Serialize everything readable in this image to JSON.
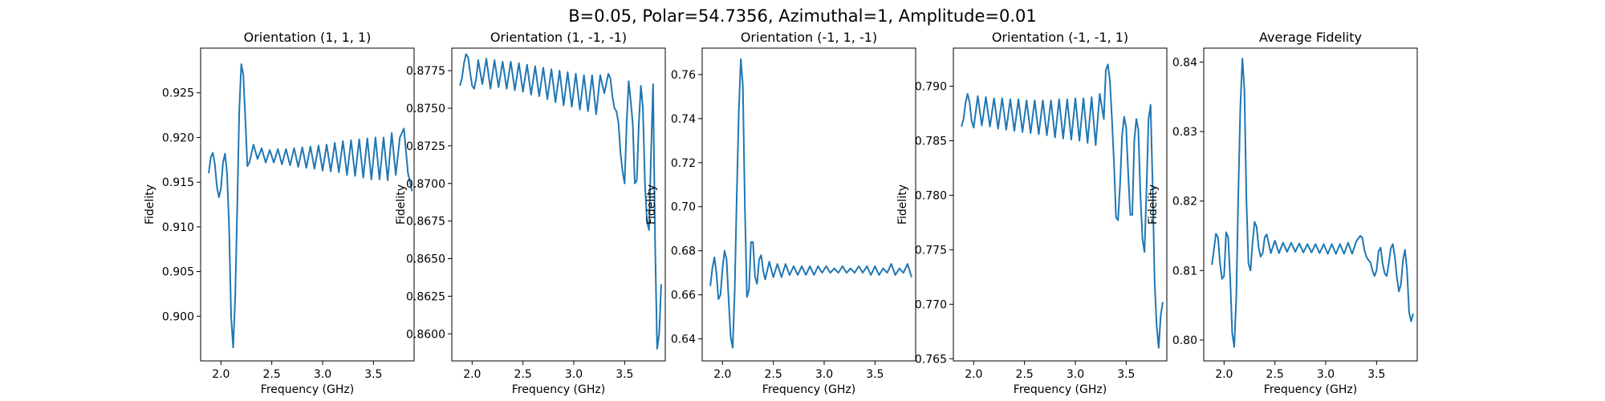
{
  "figure": {
    "suptitle": "B=0.05, Polar=54.7356, Azimuthal=1, Amplitude=0.01"
  },
  "style": {
    "line_color": "#1f77b4",
    "axis_color": "#000000",
    "background": "#ffffff"
  },
  "chart_data": [
    {
      "type": "line",
      "title": "Orientation (1, 1, 1)",
      "xlabel": "Frequency (GHz)",
      "ylabel": "Fidelity",
      "xlim": [
        1.8,
        3.9
      ],
      "ylim": [
        0.895,
        0.93
      ],
      "xticks": [
        2.0,
        2.5,
        3.0,
        3.5
      ],
      "xtick_labels": [
        "2.0",
        "2.5",
        "3.0",
        "3.5"
      ],
      "yticks": [
        0.9,
        0.905,
        0.91,
        0.915,
        0.92,
        0.925
      ],
      "ytick_labels": [
        "0.900",
        "0.905",
        "0.910",
        "0.915",
        "0.920",
        "0.925"
      ],
      "series": [
        {
          "x": [
            1.88,
            1.9,
            1.92,
            1.94,
            1.96,
            1.98,
            2.0,
            2.02,
            2.04,
            2.06,
            2.08,
            2.1,
            2.12,
            2.14,
            2.16,
            2.18,
            2.2,
            2.22,
            2.24,
            2.26,
            2.28,
            2.32,
            2.36,
            2.4,
            2.44,
            2.48,
            2.52,
            2.56,
            2.6,
            2.64,
            2.68,
            2.72,
            2.76,
            2.8,
            2.84,
            2.88,
            2.92,
            2.96,
            3.0,
            3.04,
            3.08,
            3.12,
            3.16,
            3.2,
            3.24,
            3.28,
            3.32,
            3.36,
            3.4,
            3.44,
            3.48,
            3.52,
            3.56,
            3.6,
            3.64,
            3.68,
            3.72,
            3.76,
            3.8,
            3.84,
            3.86,
            3.88
          ],
          "y": [
            0.916,
            0.9178,
            0.9183,
            0.917,
            0.9145,
            0.9133,
            0.9143,
            0.9172,
            0.9182,
            0.916,
            0.91,
            0.9,
            0.8965,
            0.902,
            0.912,
            0.923,
            0.9282,
            0.927,
            0.922,
            0.9168,
            0.9172,
            0.9192,
            0.9176,
            0.9188,
            0.9172,
            0.9186,
            0.9172,
            0.9187,
            0.917,
            0.9187,
            0.9169,
            0.9188,
            0.9167,
            0.9189,
            0.9166,
            0.919,
            0.9165,
            0.9191,
            0.9163,
            0.9192,
            0.9162,
            0.9194,
            0.9161,
            0.9196,
            0.9158,
            0.9197,
            0.9157,
            0.9198,
            0.9155,
            0.9199,
            0.9153,
            0.92,
            0.9153,
            0.92,
            0.9152,
            0.9205,
            0.9158,
            0.92,
            0.921,
            0.916,
            0.915,
            0.914
          ]
        }
      ]
    },
    {
      "type": "line",
      "title": "Orientation (1, -1, -1)",
      "xlabel": "Frequency (GHz)",
      "ylabel": "Fidelity",
      "xlim": [
        1.8,
        3.9
      ],
      "ylim": [
        0.8582,
        0.879
      ],
      "xticks": [
        2.0,
        2.5,
        3.0,
        3.5
      ],
      "xtick_labels": [
        "2.0",
        "2.5",
        "3.0",
        "3.5"
      ],
      "yticks": [
        0.86,
        0.8625,
        0.865,
        0.8675,
        0.87,
        0.8725,
        0.875,
        0.8775
      ],
      "ytick_labels": [
        "0.8600",
        "0.8625",
        "0.8650",
        "0.8675",
        "0.8700",
        "0.8725",
        "0.8750",
        "0.8775"
      ],
      "series": [
        {
          "x": [
            1.88,
            1.9,
            1.92,
            1.94,
            1.96,
            1.98,
            2.0,
            2.02,
            2.04,
            2.06,
            2.1,
            2.14,
            2.18,
            2.22,
            2.26,
            2.3,
            2.34,
            2.38,
            2.42,
            2.46,
            2.5,
            2.54,
            2.58,
            2.62,
            2.66,
            2.7,
            2.74,
            2.78,
            2.82,
            2.86,
            2.9,
            2.94,
            2.98,
            3.02,
            3.06,
            3.1,
            3.14,
            3.18,
            3.22,
            3.26,
            3.3,
            3.34,
            3.36,
            3.38,
            3.4,
            3.42,
            3.44,
            3.46,
            3.48,
            3.5,
            3.52,
            3.54,
            3.56,
            3.58,
            3.6,
            3.62,
            3.64,
            3.66,
            3.68,
            3.7,
            3.72,
            3.74,
            3.76,
            3.78,
            3.8,
            3.82,
            3.84,
            3.86
          ],
          "y": [
            0.8765,
            0.877,
            0.878,
            0.8786,
            0.8784,
            0.8774,
            0.8765,
            0.8763,
            0.877,
            0.8782,
            0.8766,
            0.8783,
            0.8763,
            0.8782,
            0.8764,
            0.8781,
            0.8763,
            0.8781,
            0.8762,
            0.878,
            0.8761,
            0.8779,
            0.8759,
            0.8778,
            0.8758,
            0.8777,
            0.8756,
            0.8776,
            0.8754,
            0.8775,
            0.8752,
            0.8774,
            0.8751,
            0.8773,
            0.8749,
            0.8772,
            0.8748,
            0.8772,
            0.8746,
            0.8772,
            0.876,
            0.8773,
            0.877,
            0.8758,
            0.875,
            0.8748,
            0.874,
            0.872,
            0.8708,
            0.87,
            0.874,
            0.8768,
            0.8755,
            0.874,
            0.87,
            0.8702,
            0.874,
            0.8765,
            0.875,
            0.87,
            0.8675,
            0.8669,
            0.872,
            0.8766,
            0.866,
            0.859,
            0.86,
            0.8633
          ]
        }
      ]
    },
    {
      "type": "line",
      "title": "Orientation (-1, 1, -1)",
      "xlabel": "Frequency (GHz)",
      "ylabel": "Fidelity",
      "xlim": [
        1.8,
        3.9
      ],
      "ylim": [
        0.63,
        0.772
      ],
      "xticks": [
        2.0,
        2.5,
        3.0,
        3.5
      ],
      "xtick_labels": [
        "2.0",
        "2.5",
        "3.0",
        "3.5"
      ],
      "yticks": [
        0.64,
        0.66,
        0.68,
        0.7,
        0.72,
        0.74,
        0.76
      ],
      "ytick_labels": [
        "0.64",
        "0.66",
        "0.68",
        "0.70",
        "0.72",
        "0.74",
        "0.76"
      ],
      "series": [
        {
          "x": [
            1.88,
            1.9,
            1.92,
            1.94,
            1.96,
            1.98,
            2.0,
            2.02,
            2.04,
            2.06,
            2.08,
            2.1,
            2.12,
            2.14,
            2.16,
            2.18,
            2.2,
            2.22,
            2.24,
            2.26,
            2.28,
            2.3,
            2.32,
            2.34,
            2.36,
            2.38,
            2.4,
            2.42,
            2.46,
            2.5,
            2.54,
            2.58,
            2.62,
            2.66,
            2.7,
            2.74,
            2.78,
            2.82,
            2.86,
            2.9,
            2.94,
            2.98,
            3.02,
            3.06,
            3.1,
            3.14,
            3.18,
            3.22,
            3.26,
            3.3,
            3.34,
            3.38,
            3.42,
            3.46,
            3.5,
            3.54,
            3.58,
            3.62,
            3.66,
            3.7,
            3.74,
            3.78,
            3.82,
            3.86
          ],
          "y": [
            0.664,
            0.672,
            0.677,
            0.67,
            0.658,
            0.66,
            0.672,
            0.68,
            0.676,
            0.658,
            0.641,
            0.636,
            0.662,
            0.705,
            0.743,
            0.767,
            0.755,
            0.7,
            0.659,
            0.662,
            0.684,
            0.684,
            0.668,
            0.665,
            0.676,
            0.678,
            0.671,
            0.667,
            0.675,
            0.668,
            0.674,
            0.668,
            0.674,
            0.669,
            0.673,
            0.669,
            0.673,
            0.669,
            0.673,
            0.669,
            0.673,
            0.67,
            0.673,
            0.67,
            0.672,
            0.67,
            0.673,
            0.67,
            0.672,
            0.67,
            0.673,
            0.67,
            0.673,
            0.669,
            0.673,
            0.669,
            0.672,
            0.67,
            0.674,
            0.669,
            0.672,
            0.67,
            0.674,
            0.668
          ]
        }
      ]
    },
    {
      "type": "line",
      "title": "Orientation (-1, -1, 1)",
      "xlabel": "Frequency (GHz)",
      "ylabel": "Fidelity",
      "xlim": [
        1.8,
        3.9
      ],
      "ylim": [
        0.7648,
        0.7935
      ],
      "xticks": [
        2.0,
        2.5,
        3.0,
        3.5
      ],
      "xtick_labels": [
        "2.0",
        "2.5",
        "3.0",
        "3.5"
      ],
      "yticks": [
        0.765,
        0.77,
        0.775,
        0.78,
        0.785,
        0.79
      ],
      "ytick_labels": [
        "0.765",
        "0.770",
        "0.775",
        "0.780",
        "0.785",
        "0.790"
      ],
      "series": [
        {
          "x": [
            1.88,
            1.9,
            1.92,
            1.94,
            1.96,
            1.98,
            2.0,
            2.04,
            2.08,
            2.12,
            2.16,
            2.2,
            2.24,
            2.28,
            2.32,
            2.36,
            2.4,
            2.44,
            2.48,
            2.52,
            2.56,
            2.6,
            2.64,
            2.68,
            2.72,
            2.76,
            2.8,
            2.84,
            2.88,
            2.92,
            2.96,
            3.0,
            3.04,
            3.08,
            3.12,
            3.16,
            3.2,
            3.24,
            3.28,
            3.3,
            3.32,
            3.34,
            3.36,
            3.38,
            3.4,
            3.42,
            3.44,
            3.46,
            3.48,
            3.5,
            3.52,
            3.54,
            3.56,
            3.58,
            3.6,
            3.62,
            3.64,
            3.66,
            3.68,
            3.7,
            3.72,
            3.74,
            3.76,
            3.78,
            3.8,
            3.82,
            3.84,
            3.86
          ],
          "y": [
            0.7863,
            0.787,
            0.7885,
            0.7893,
            0.7885,
            0.7868,
            0.7862,
            0.7891,
            0.7864,
            0.789,
            0.7863,
            0.7889,
            0.7861,
            0.7889,
            0.786,
            0.7888,
            0.7859,
            0.7888,
            0.7858,
            0.7887,
            0.7857,
            0.7887,
            0.7856,
            0.7887,
            0.7855,
            0.7887,
            0.7853,
            0.7888,
            0.7852,
            0.7888,
            0.7851,
            0.7889,
            0.785,
            0.7889,
            0.7848,
            0.789,
            0.7846,
            0.7893,
            0.787,
            0.7915,
            0.792,
            0.7905,
            0.787,
            0.783,
            0.778,
            0.7777,
            0.781,
            0.7855,
            0.7872,
            0.7862,
            0.782,
            0.7782,
            0.7782,
            0.785,
            0.787,
            0.786,
            0.78,
            0.776,
            0.7748,
            0.7805,
            0.787,
            0.7883,
            0.781,
            0.772,
            0.768,
            0.766,
            0.769,
            0.7702
          ]
        }
      ]
    },
    {
      "type": "line",
      "title": "Average Fidelity",
      "xlabel": "Frequency (GHz)",
      "ylabel": "Fidelity",
      "xlim": [
        1.8,
        3.9
      ],
      "ylim": [
        0.797,
        0.842
      ],
      "xticks": [
        2.0,
        2.5,
        3.0,
        3.5
      ],
      "xtick_labels": [
        "2.0",
        "2.5",
        "3.0",
        "3.5"
      ],
      "yticks": [
        0.8,
        0.81,
        0.82,
        0.83,
        0.84
      ],
      "ytick_labels": [
        "0.80",
        "0.81",
        "0.82",
        "0.83",
        "0.84"
      ],
      "series": [
        {
          "x": [
            1.88,
            1.9,
            1.92,
            1.94,
            1.96,
            1.98,
            2.0,
            2.02,
            2.04,
            2.06,
            2.08,
            2.1,
            2.12,
            2.14,
            2.16,
            2.18,
            2.2,
            2.22,
            2.24,
            2.26,
            2.28,
            2.3,
            2.32,
            2.34,
            2.36,
            2.38,
            2.4,
            2.42,
            2.46,
            2.5,
            2.54,
            2.58,
            2.62,
            2.66,
            2.7,
            2.74,
            2.78,
            2.82,
            2.86,
            2.9,
            2.94,
            2.98,
            3.02,
            3.06,
            3.1,
            3.14,
            3.18,
            3.22,
            3.26,
            3.3,
            3.34,
            3.36,
            3.38,
            3.4,
            3.42,
            3.44,
            3.46,
            3.48,
            3.5,
            3.52,
            3.54,
            3.56,
            3.58,
            3.6,
            3.62,
            3.64,
            3.66,
            3.68,
            3.7,
            3.72,
            3.74,
            3.76,
            3.78,
            3.8,
            3.82,
            3.84,
            3.86
          ],
          "y": [
            0.8108,
            0.813,
            0.8153,
            0.8148,
            0.811,
            0.8088,
            0.8092,
            0.8155,
            0.8148,
            0.809,
            0.801,
            0.799,
            0.806,
            0.821,
            0.8335,
            0.8405,
            0.836,
            0.82,
            0.811,
            0.81,
            0.814,
            0.817,
            0.8163,
            0.8133,
            0.812,
            0.8125,
            0.8148,
            0.8152,
            0.8125,
            0.8143,
            0.8125,
            0.814,
            0.8127,
            0.814,
            0.8127,
            0.8139,
            0.8126,
            0.8138,
            0.8126,
            0.8138,
            0.8125,
            0.8138,
            0.8124,
            0.8138,
            0.8124,
            0.8138,
            0.8124,
            0.814,
            0.8124,
            0.8142,
            0.815,
            0.8147,
            0.813,
            0.812,
            0.8115,
            0.8112,
            0.81,
            0.8092,
            0.81,
            0.8128,
            0.8133,
            0.811,
            0.8096,
            0.8092,
            0.811,
            0.8132,
            0.8138,
            0.812,
            0.809,
            0.807,
            0.808,
            0.8115,
            0.813,
            0.81,
            0.804,
            0.8027,
            0.8038
          ]
        }
      ]
    }
  ]
}
